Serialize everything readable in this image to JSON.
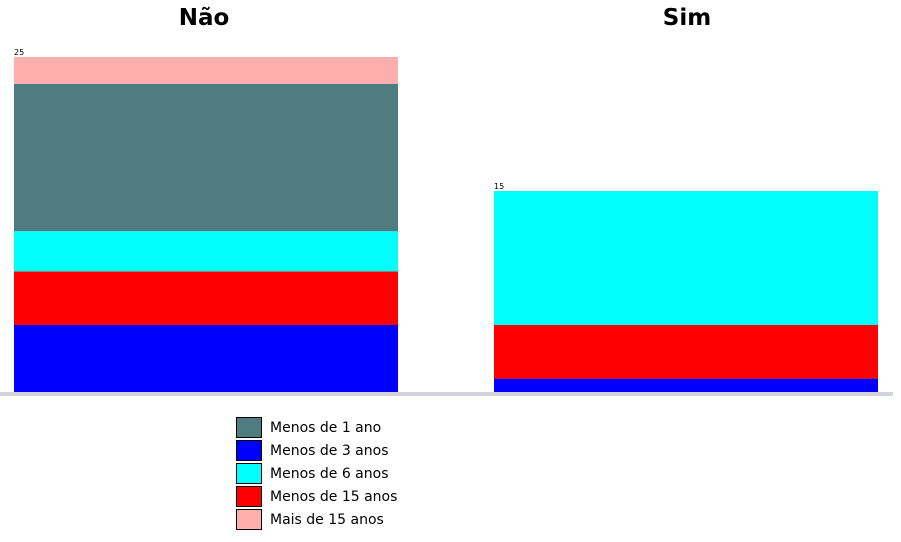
{
  "chart_data": {
    "type": "bar",
    "stacked": true,
    "panels": [
      {
        "title": "Não",
        "total_label": "25",
        "segments": [
          {
            "series": "Menos de 3 anos",
            "value": 5.0
          },
          {
            "series": "Menos de 15 anos",
            "value": 4.0
          },
          {
            "series": "Menos de 6 anos",
            "value": 3.0
          },
          {
            "series": "Menos de 1 ano",
            "value": 11.0
          },
          {
            "series": "Mais de 15 anos",
            "value": 2.0
          }
        ]
      },
      {
        "title": "Sim",
        "total_label": "15",
        "segments": [
          {
            "series": "Menos de 3 anos",
            "value": 1.0
          },
          {
            "series": "Menos de 15 anos",
            "value": 4.0
          },
          {
            "series": "Menos de 6 anos",
            "value": 10.0
          }
        ]
      }
    ],
    "ylim": [
      0,
      25
    ],
    "grid": false,
    "legend_position": "bottom-left",
    "legend": [
      {
        "label": "Menos de 1 ano",
        "color": "#4e7c80"
      },
      {
        "label": "Menos de 3 anos",
        "color": "#0000ff"
      },
      {
        "label": "Menos de 6 anos",
        "color": "#00ffff"
      },
      {
        "label": "Menos de 15 anos",
        "color": "#ff0000"
      },
      {
        "label": "Mais de 15 anos",
        "color": "#ffaeae"
      }
    ],
    "baseline_color": "#d3d3e0"
  }
}
